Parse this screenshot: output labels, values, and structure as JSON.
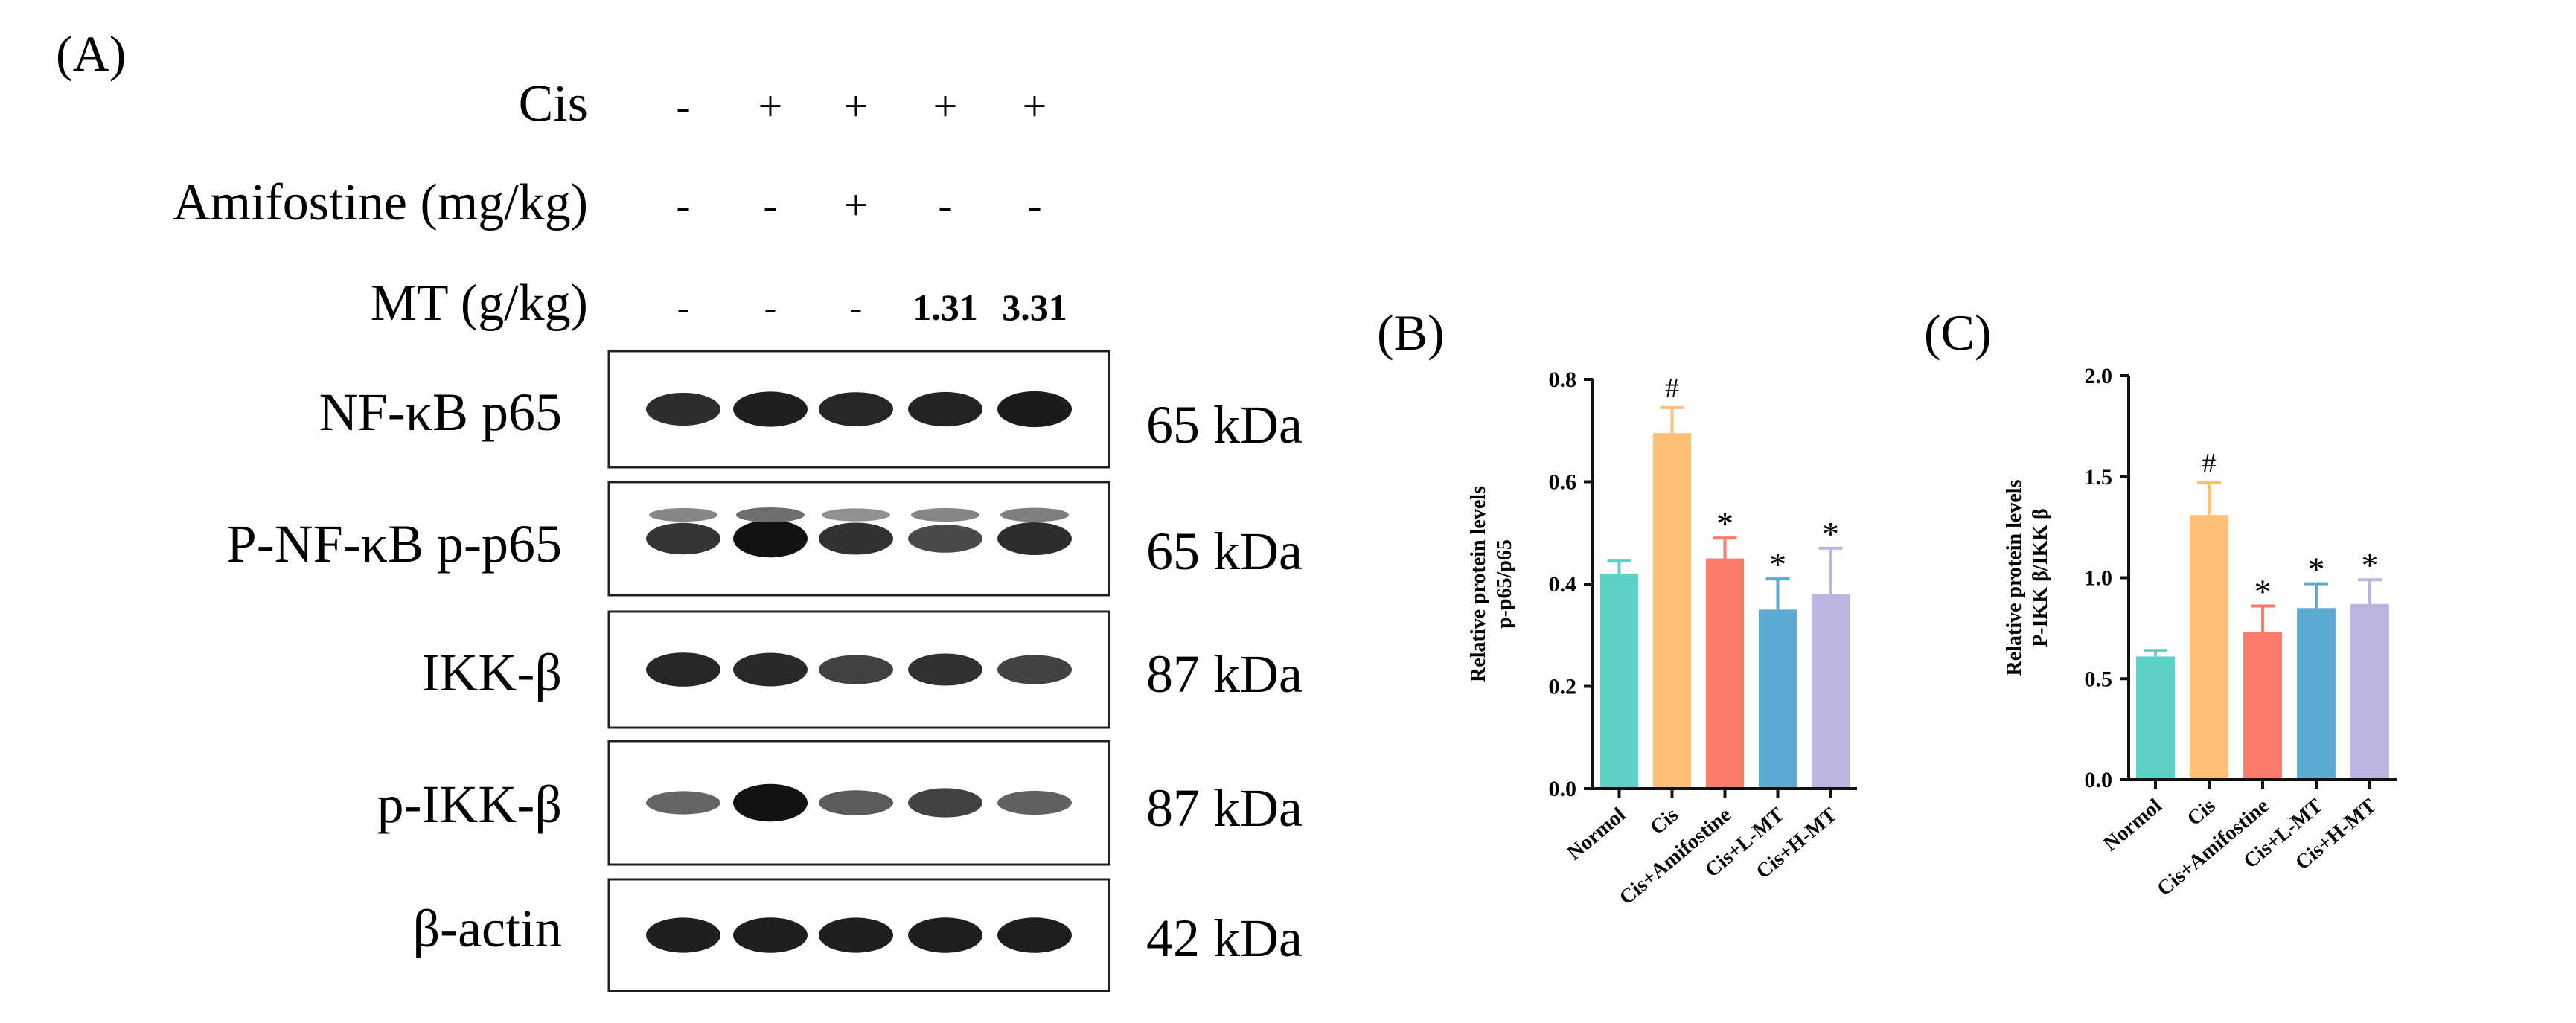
{
  "panel_a": {
    "label": "(A)",
    "treatments": [
      {
        "name": "Cis",
        "values": [
          "-",
          "+",
          "+",
          "+",
          "+"
        ]
      },
      {
        "name": "Amifostine (mg/kg)",
        "values": [
          "-",
          "-",
          "+",
          "-",
          "-"
        ]
      },
      {
        "name": "MT (g/kg)",
        "values": [
          "-",
          "-",
          "-",
          "1.31",
          "3.31"
        ]
      }
    ],
    "blots": [
      {
        "protein": "NF-κB p65",
        "kda": "65 kDa",
        "bands": [
          0.75,
          0.85,
          0.8,
          0.82,
          0.88
        ],
        "upper": []
      },
      {
        "protein": "P-NF-κB p-p65",
        "kda": "65 kDa",
        "bands": [
          0.7,
          0.95,
          0.72,
          0.55,
          0.75
        ],
        "upper": [
          0.35,
          0.5,
          0.28,
          0.35,
          0.4
        ]
      },
      {
        "protein": "IKK-β",
        "kda": "87 kDa",
        "bands": [
          0.8,
          0.78,
          0.6,
          0.72,
          0.6
        ],
        "upper": []
      },
      {
        "protein": "p-IKK-β",
        "kda": "87 kDa",
        "bands": [
          0.35,
          0.95,
          0.42,
          0.6,
          0.38
        ],
        "upper": []
      },
      {
        "protein": "β-actin",
        "kda": "42 kDa",
        "bands": [
          0.85,
          0.86,
          0.85,
          0.86,
          0.86
        ],
        "upper": []
      }
    ]
  },
  "chart_data": [
    {
      "type": "bar",
      "panel_label": "(B)",
      "ylabel_line1": "Relative protein levels",
      "ylabel_line2": "p-p65/p65",
      "categories": [
        "Normol",
        "Cis",
        "Cis+Amifostine",
        "Cis+L-MT",
        "Cis+H-MT"
      ],
      "values": [
        0.42,
        0.695,
        0.45,
        0.35,
        0.38
      ],
      "errors": [
        0.025,
        0.05,
        0.04,
        0.06,
        0.09
      ],
      "annotations": [
        "",
        "#",
        "*",
        "*",
        "*"
      ],
      "ylim": [
        0,
        0.8
      ],
      "yticks": [
        "0.0",
        "0.2",
        "0.4",
        "0.6",
        "0.8"
      ],
      "colors": [
        "#5ed1c6",
        "#ffbf75",
        "#fb7b6b",
        "#5caad4",
        "#bbb3e0"
      ]
    },
    {
      "type": "bar",
      "panel_label": "(C)",
      "ylabel_line1": "Relative protein levels",
      "ylabel_line2": "P-IKK β/IKK β",
      "categories": [
        "Normol",
        "Cis",
        "Cis+Amifostine",
        "Cis+L-MT",
        "Cis+H-MT"
      ],
      "values": [
        0.61,
        1.31,
        0.73,
        0.85,
        0.87
      ],
      "errors": [
        0.03,
        0.16,
        0.13,
        0.12,
        0.12
      ],
      "annotations": [
        "",
        "#",
        "*",
        "*",
        "*"
      ],
      "ylim": [
        0,
        2.0
      ],
      "yticks": [
        "0.0",
        "0.5",
        "1.0",
        "1.5",
        "2.0"
      ],
      "colors": [
        "#5ed1c6",
        "#ffbf75",
        "#fb7b6b",
        "#5caad4",
        "#bbb3e0"
      ]
    }
  ]
}
